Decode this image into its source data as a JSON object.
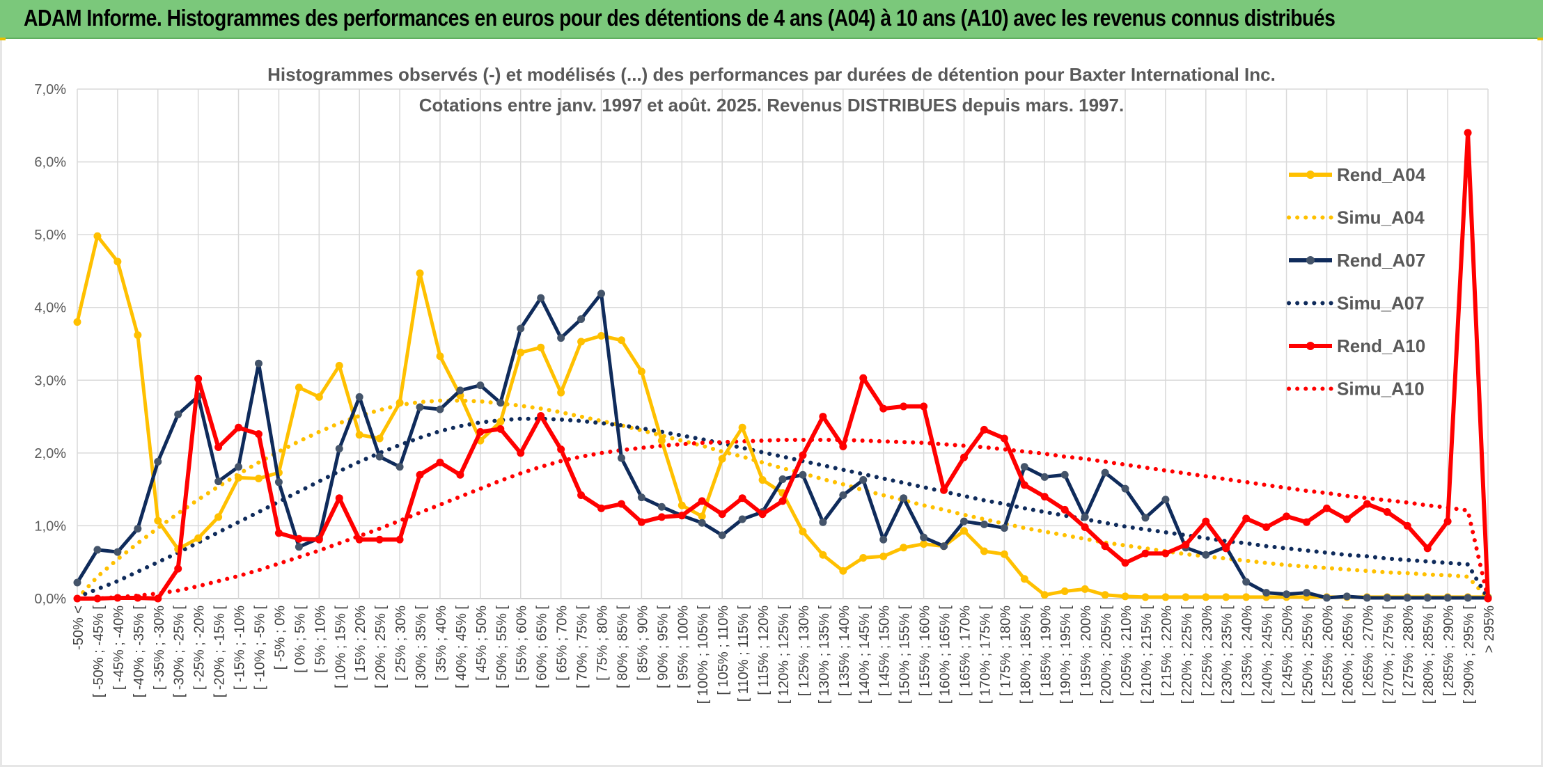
{
  "header": {
    "title": "ADAM Informe. Histogrammes des performances en euros pour des détentions de 4 ans (A04) à 10 ans (A10) avec les revenus connus distribués"
  },
  "colors": {
    "header_bg": "#7bc87b",
    "A04": "#ffc000",
    "A07": "#0f2b5b",
    "A07_marker": "#44546a",
    "A10": "#ff0000",
    "grid": "#d9d9d9"
  },
  "chart_data": {
    "type": "line",
    "title_lines": [
      "Histogrammes observés (-) et modélisés (...) des performances par durées de détention pour Baxter International Inc.",
      "Cotations entre janv. 1997 et août. 2025. Revenus DISTRIBUES depuis mars. 1997."
    ],
    "ylim": [
      0,
      7
    ],
    "y_ticks": [
      "0,0%",
      "1,0%",
      "2,0%",
      "3,0%",
      "4,0%",
      "5,0%",
      "6,0%",
      "7,0%"
    ],
    "grid": true,
    "legend_position": "right",
    "categories": [
      "-50% <",
      "[ -50% ; -45% [",
      "[ -45% ; -40%",
      "[ -40% ; -35% [",
      "[ -35% ; -30%",
      "[ -30% ; -25% [",
      "[ -25% ; -20%",
      "[ -20% ; -15% [",
      "[ -15% ; -10%",
      "[ -10% ; -5% [",
      "[ -5% ; 0%",
      "[ 0% ; 5% [",
      "[ 5% ; 10%",
      "[ 10% ; 15% [",
      "[ 15% ; 20%",
      "[ 20% ; 25% [",
      "[ 25% ; 30%",
      "[ 30% ; 35% [",
      "[ 35% ; 40%",
      "[ 40% ; 45% [",
      "[ 45% ; 50%",
      "[ 50% ; 55% [",
      "[ 55% ; 60%",
      "[ 60% ; 65% [",
      "[ 65% ; 70%",
      "[ 70% ; 75% [",
      "[ 75% ; 80%",
      "[ 80% ; 85% [",
      "[ 85% ; 90%",
      "[ 90% ; 95% [",
      "[ 95% ; 100%",
      "[ 100% ; 105% [",
      "[ 105% ; 110%",
      "[ 110% ; 115% [",
      "[ 115% ; 120%",
      "[ 120% ; 125% [",
      "[ 125% ; 130%",
      "[ 130% ; 135% [",
      "[ 135% ; 140%",
      "[ 140% ; 145% [",
      "[ 145% ; 150%",
      "[ 150% ; 155% [",
      "[ 155% ; 160%",
      "[ 160% ; 165% [",
      "[ 165% ; 170%",
      "[ 170% ; 175% [",
      "[ 175% ; 180%",
      "[ 180% ; 185% [",
      "[ 185% ; 190%",
      "[ 190% ; 195% [",
      "[ 195% ; 200%",
      "[ 200% ; 205% [",
      "[ 205% ; 210%",
      "[ 210% ; 215% [",
      "[ 215% ; 220%",
      "[ 220% ; 225% [",
      "[ 225% ; 230%",
      "[ 230% ; 235% [",
      "[ 235% ; 240%",
      "[ 240% ; 245% [",
      "[ 245% ; 250%",
      "[ 250% ; 255% [",
      "[ 255% ; 260%",
      "[ 260% ; 265% [",
      "[ 265% ; 270%",
      "[ 270% ; 275% [",
      "[ 275% ; 280%",
      "[ 280% ; 285% [",
      "[ 285% ; 290%",
      "[ 290% ; 295% [",
      "> 295%"
    ],
    "series": [
      {
        "name": "Rend_A04",
        "style": "solid",
        "color": "#ffc000",
        "values": [
          3.8,
          4.98,
          4.63,
          3.62,
          1.07,
          0.68,
          0.83,
          1.12,
          1.66,
          1.65,
          1.73,
          2.9,
          2.77,
          3.2,
          2.25,
          2.2,
          2.69,
          4.47,
          3.33,
          2.79,
          2.17,
          2.43,
          3.38,
          3.45,
          2.83,
          3.53,
          3.61,
          3.55,
          3.12,
          2.17,
          1.28,
          1.13,
          1.92,
          2.35,
          1.63,
          1.45,
          0.92,
          0.6,
          0.38,
          0.56,
          0.58,
          0.7,
          0.75,
          0.72,
          0.93,
          0.65,
          0.61,
          0.27,
          0.05,
          0.1,
          0.13,
          0.05,
          0.03,
          0.02,
          0.02,
          0.02,
          0.02,
          0.02,
          0.02,
          0.02,
          0.02,
          0.02,
          0.02,
          0.02,
          0.02,
          0.02,
          0.02,
          0.02,
          0.02,
          0.02,
          0.02
        ]
      },
      {
        "name": "Simu_A04",
        "style": "dotted",
        "color": "#ffc000",
        "values": [
          0.0,
          0.3,
          0.54,
          0.76,
          0.97,
          1.17,
          1.36,
          1.54,
          1.71,
          1.87,
          2.02,
          2.16,
          2.29,
          2.41,
          2.51,
          2.59,
          2.66,
          2.7,
          2.72,
          2.72,
          2.71,
          2.68,
          2.65,
          2.61,
          2.56,
          2.5,
          2.44,
          2.38,
          2.31,
          2.24,
          2.17,
          2.1,
          2.02,
          1.95,
          1.87,
          1.79,
          1.72,
          1.64,
          1.57,
          1.49,
          1.42,
          1.35,
          1.28,
          1.22,
          1.15,
          1.09,
          1.03,
          0.97,
          0.92,
          0.87,
          0.82,
          0.77,
          0.73,
          0.69,
          0.65,
          0.61,
          0.58,
          0.55,
          0.52,
          0.49,
          0.46,
          0.44,
          0.42,
          0.4,
          0.38,
          0.36,
          0.35,
          0.33,
          0.32,
          0.3,
          0.0
        ]
      },
      {
        "name": "Rend_A07",
        "style": "solid",
        "color": "#0f2b5b",
        "values": [
          0.22,
          0.67,
          0.64,
          0.96,
          1.88,
          2.53,
          2.78,
          1.61,
          1.81,
          3.23,
          1.6,
          0.71,
          0.83,
          2.06,
          2.77,
          1.95,
          1.81,
          2.63,
          2.6,
          2.86,
          2.93,
          2.69,
          3.71,
          4.13,
          3.58,
          3.84,
          4.19,
          1.93,
          1.39,
          1.26,
          1.14,
          1.04,
          0.87,
          1.09,
          1.19,
          1.64,
          1.7,
          1.05,
          1.42,
          1.63,
          0.81,
          1.38,
          0.84,
          0.72,
          1.06,
          1.02,
          0.97,
          1.81,
          1.67,
          1.7,
          1.12,
          1.73,
          1.51,
          1.11,
          1.36,
          0.7,
          0.6,
          0.71,
          0.23,
          0.08,
          0.06,
          0.08,
          0.01,
          0.03,
          0.01,
          0.01,
          0.01,
          0.01,
          0.01,
          0.01,
          0.01
        ]
      },
      {
        "name": "Simu_A07",
        "style": "dotted",
        "color": "#0f2b5b",
        "values": [
          0.02,
          0.13,
          0.24,
          0.37,
          0.5,
          0.63,
          0.77,
          0.91,
          1.05,
          1.19,
          1.33,
          1.47,
          1.61,
          1.75,
          1.88,
          2.0,
          2.11,
          2.21,
          2.3,
          2.37,
          2.42,
          2.45,
          2.47,
          2.47,
          2.46,
          2.44,
          2.41,
          2.38,
          2.34,
          2.29,
          2.24,
          2.19,
          2.13,
          2.07,
          2.01,
          1.95,
          1.89,
          1.83,
          1.77,
          1.71,
          1.65,
          1.59,
          1.53,
          1.47,
          1.41,
          1.35,
          1.3,
          1.24,
          1.19,
          1.14,
          1.09,
          1.04,
          0.99,
          0.95,
          0.91,
          0.87,
          0.83,
          0.79,
          0.76,
          0.72,
          0.69,
          0.66,
          0.63,
          0.6,
          0.58,
          0.55,
          0.53,
          0.51,
          0.49,
          0.47,
          0.0
        ]
      },
      {
        "name": "Rend_A10",
        "style": "solid",
        "color": "#ff0000",
        "values": [
          0.0,
          0.0,
          0.01,
          0.01,
          0.0,
          0.41,
          3.02,
          2.08,
          2.35,
          2.26,
          0.9,
          0.82,
          0.81,
          1.38,
          0.81,
          0.81,
          0.81,
          1.7,
          1.87,
          1.7,
          2.29,
          2.33,
          2.0,
          2.51,
          2.05,
          1.42,
          1.24,
          1.3,
          1.05,
          1.12,
          1.14,
          1.34,
          1.16,
          1.38,
          1.16,
          1.34,
          1.97,
          2.5,
          2.09,
          3.03,
          2.61,
          2.64,
          2.64,
          1.49,
          1.94,
          2.32,
          2.2,
          1.56,
          1.4,
          1.22,
          0.98,
          0.72,
          0.49,
          0.62,
          0.62,
          0.74,
          1.06,
          0.69,
          1.1,
          0.98,
          1.13,
          1.05,
          1.24,
          1.09,
          1.3,
          1.19,
          1.0,
          0.69,
          1.06,
          6.4,
          0.0
        ]
      },
      {
        "name": "Simu_A10",
        "style": "dotted",
        "color": "#ff0000",
        "values": [
          0.0,
          0.0,
          0.02,
          0.04,
          0.07,
          0.11,
          0.17,
          0.24,
          0.31,
          0.39,
          0.48,
          0.57,
          0.66,
          0.76,
          0.86,
          0.96,
          1.07,
          1.18,
          1.29,
          1.4,
          1.51,
          1.62,
          1.72,
          1.81,
          1.89,
          1.95,
          2.0,
          2.04,
          2.07,
          2.1,
          2.12,
          2.14,
          2.15,
          2.16,
          2.17,
          2.18,
          2.18,
          2.18,
          2.18,
          2.17,
          2.16,
          2.15,
          2.14,
          2.12,
          2.1,
          2.08,
          2.05,
          2.02,
          1.99,
          1.95,
          1.92,
          1.88,
          1.84,
          1.8,
          1.76,
          1.72,
          1.68,
          1.64,
          1.6,
          1.56,
          1.52,
          1.48,
          1.45,
          1.41,
          1.38,
          1.35,
          1.32,
          1.28,
          1.25,
          1.21,
          0.0
        ]
      }
    ]
  }
}
